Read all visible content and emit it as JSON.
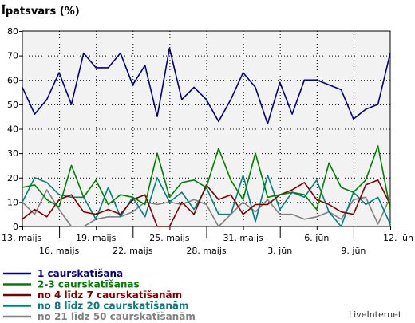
{
  "chart_data": {
    "type": "line",
    "title": "Īpatsvars (%)",
    "ylim": [
      0,
      80
    ],
    "yticks": [
      0,
      10,
      20,
      30,
      40,
      50,
      60,
      70,
      80
    ],
    "grid": true,
    "x_tick_labels": [
      {
        "day": 0,
        "label": "13. maijs",
        "row": 1
      },
      {
        "day": 3,
        "label": "16. maijs",
        "row": 2
      },
      {
        "day": 6,
        "label": "19. maijs",
        "row": 1
      },
      {
        "day": 9,
        "label": "22. maijs",
        "row": 2
      },
      {
        "day": 12,
        "label": "25. maijs",
        "row": 1
      },
      {
        "day": 15,
        "label": "28. maijs",
        "row": 2
      },
      {
        "day": 18,
        "label": "31. maijs",
        "row": 1
      },
      {
        "day": 21,
        "label": "3. jūn",
        "row": 2
      },
      {
        "day": 24,
        "label": "6. jūn",
        "row": 1
      },
      {
        "day": 27,
        "label": "9. jūn",
        "row": 2
      },
      {
        "day": 30,
        "label": "12. jūn",
        "row": 1
      }
    ],
    "series": [
      {
        "name": "1 caurskatīšana",
        "color": "#000080",
        "values": [
          57,
          46,
          52,
          63,
          50,
          71,
          65,
          65,
          71,
          58,
          66,
          45,
          73,
          52,
          57,
          52,
          43,
          52,
          63,
          57,
          42,
          59,
          46,
          60,
          60,
          58,
          56,
          44,
          48,
          50,
          71
        ]
      },
      {
        "name": "2-3 caurskatīšanas",
        "color": "#008000",
        "values": [
          16,
          17,
          11,
          8,
          25,
          12,
          19,
          9,
          13,
          12,
          9,
          30,
          12,
          18,
          19,
          16,
          32,
          19,
          11,
          30,
          12,
          13,
          14,
          13,
          7,
          26,
          16,
          14,
          19,
          33,
          7
        ]
      },
      {
        "name": "no 4 līdz 7 caurskatīšanām",
        "color": "#800000",
        "values": [
          3,
          7,
          4,
          11,
          13,
          6,
          5,
          7,
          5,
          11,
          13,
          0,
          0,
          10,
          5,
          17,
          11,
          13,
          5,
          9,
          9,
          13,
          15,
          18,
          11,
          9,
          6,
          5,
          17,
          19,
          9
        ]
      },
      {
        "name": "no 8 līdz 20 caurskatīšanām",
        "color": "#008080",
        "values": [
          10,
          20,
          18,
          13,
          12,
          12,
          3,
          16,
          4,
          12,
          4,
          20,
          10,
          14,
          7,
          16,
          5,
          5,
          21,
          2,
          21,
          7,
          14,
          12,
          19,
          6,
          0,
          14,
          9,
          12,
          1
        ]
      },
      {
        "name": "no 21 līdz 50 caurskatīšanām",
        "color": "#808080",
        "values": [
          10,
          5,
          15,
          7,
          0,
          0,
          3,
          4,
          4,
          6,
          10,
          9,
          10,
          9,
          11,
          9,
          0,
          5,
          10,
          6,
          11,
          5,
          5,
          3,
          4,
          6,
          3,
          11,
          12,
          1,
          12
        ]
      }
    ]
  },
  "brand": {
    "text": "LiveInternet"
  }
}
